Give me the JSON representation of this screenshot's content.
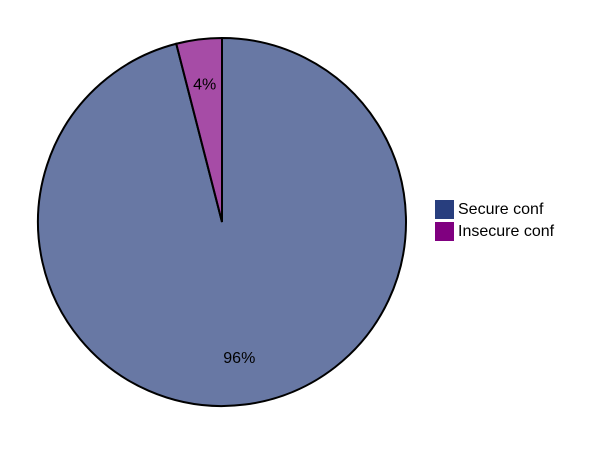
{
  "chart_data": {
    "type": "pie",
    "categories": [
      "Secure conf",
      "Insecure conf"
    ],
    "values": [
      96,
      4
    ],
    "value_labels": [
      "96%",
      "4%"
    ],
    "colors": [
      "#283e7e",
      "#800080"
    ],
    "legend": "right"
  }
}
